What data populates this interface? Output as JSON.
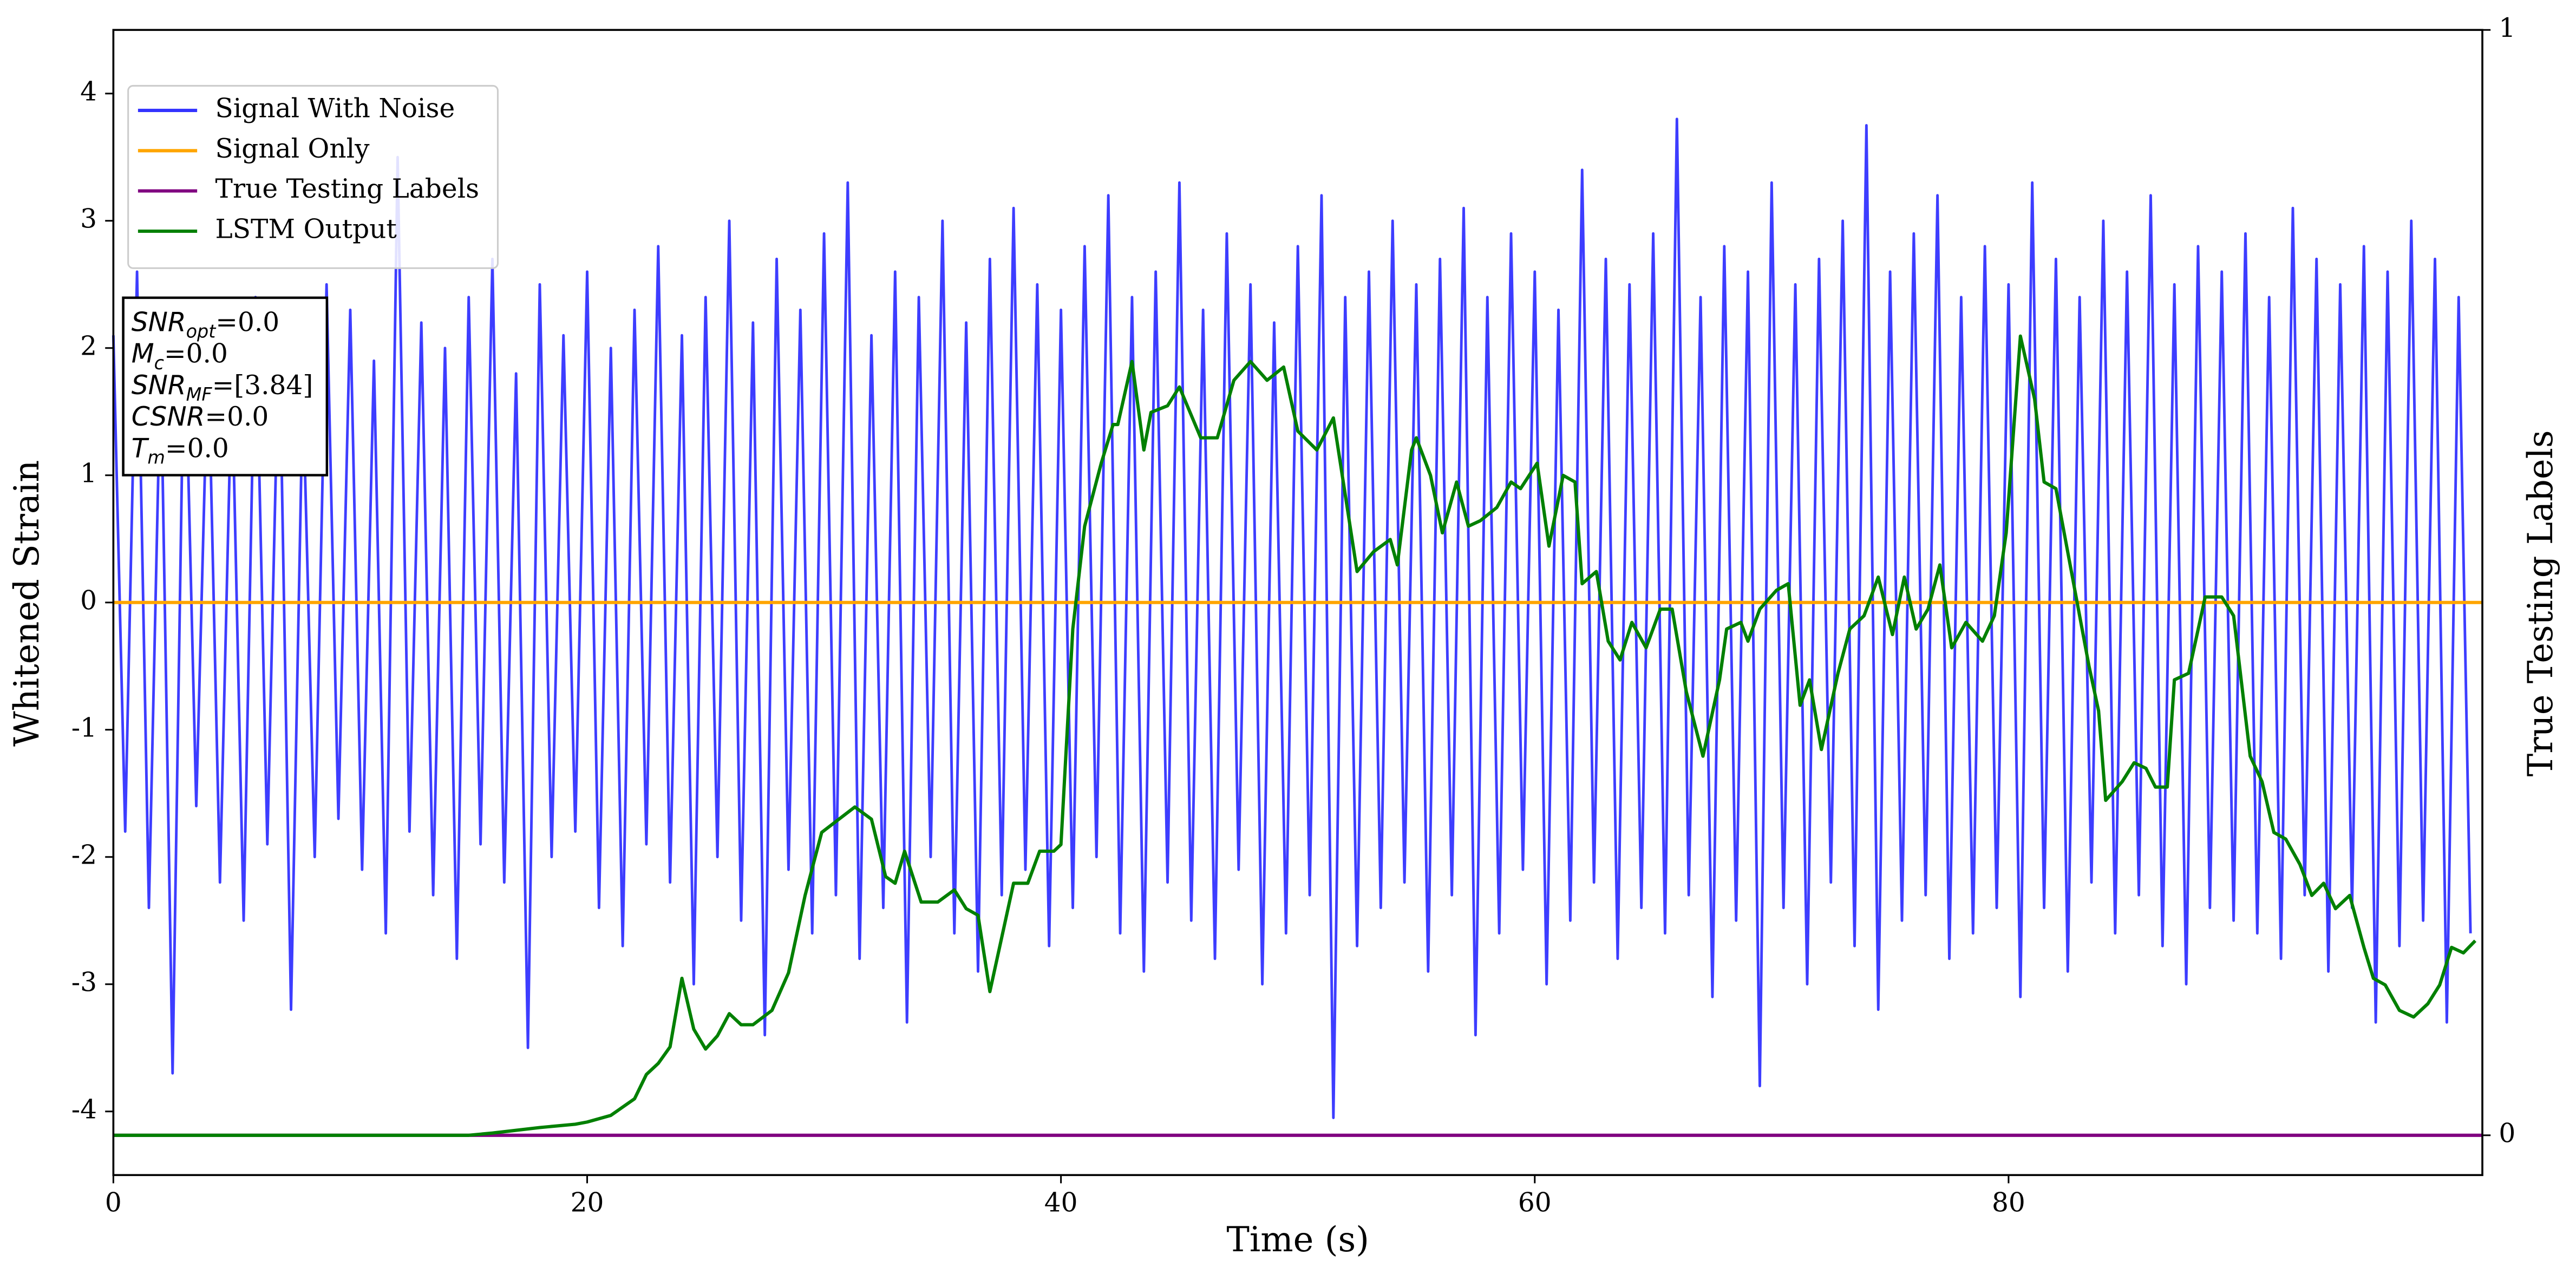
{
  "chart_data": {
    "type": "line",
    "xlabel": "Time (s)",
    "ylabel": "Whitened Strain",
    "y2label": "True Testing Labels",
    "xlim": [
      0,
      100
    ],
    "ylim": [
      -4.5,
      4.5
    ],
    "y2lim": [
      -0.036,
      1
    ],
    "xticks": [
      0,
      20,
      40,
      60,
      80
    ],
    "yticks": [
      -4,
      -3,
      -2,
      -1,
      0,
      1,
      2,
      3,
      4
    ],
    "y2ticks": [
      0,
      1
    ],
    "legend": "upper left",
    "annotations": [
      {
        "text": "SNR",
        "sub": "opt",
        "rest": "=0.0"
      },
      {
        "text": "M",
        "sub": "c",
        "rest": "=0.0"
      },
      {
        "text": "SNR",
        "sub": "MF",
        "rest": "=[3.84]"
      },
      {
        "text": "CSNR",
        "rest": "=0.0"
      },
      {
        "text": "T",
        "sub": "m",
        "rest": "=0.0"
      }
    ],
    "series": [
      {
        "name": "Signal With Noise",
        "color": "#3333ff",
        "x": [
          0,
          0.5,
          1,
          1.5,
          2,
          2.5,
          3,
          3.5,
          4,
          4.5,
          5,
          5.5,
          6,
          6.5,
          7,
          7.5,
          8,
          8.5,
          9,
          9.5,
          10,
          10.5,
          11,
          11.5,
          12,
          12.5,
          13,
          13.5,
          14,
          14.5,
          15,
          15.5,
          16,
          16.5,
          17,
          17.5,
          18,
          18.5,
          19,
          19.5,
          20,
          20.5,
          21,
          21.5,
          22,
          22.5,
          23,
          23.5,
          24,
          24.5,
          25,
          25.5,
          26,
          26.5,
          27,
          27.5,
          28,
          28.5,
          29,
          29.5,
          30,
          30.5,
          31,
          31.5,
          32,
          32.5,
          33,
          33.5,
          34,
          34.5,
          35,
          35.5,
          36,
          36.5,
          37,
          37.5,
          38,
          38.5,
          39,
          39.5,
          40,
          40.5,
          41,
          41.5,
          42,
          42.5,
          43,
          43.5,
          44,
          44.5,
          45,
          45.5,
          46,
          46.5,
          47,
          47.5,
          48,
          48.5,
          49,
          49.5,
          50,
          50.5,
          51,
          51.5,
          52,
          52.5,
          53,
          53.5,
          54,
          54.5,
          55,
          55.5,
          56,
          56.5,
          57,
          57.5,
          58,
          58.5,
          59,
          59.5,
          60,
          60.5,
          61,
          61.5,
          62,
          62.5,
          63,
          63.5,
          64,
          64.5,
          65,
          65.5,
          66,
          66.5,
          67,
          67.5,
          68,
          68.5,
          69,
          69.5,
          70,
          70.5,
          71,
          71.5,
          72,
          72.5,
          73,
          73.5,
          74,
          74.5,
          75,
          75.5,
          76,
          76.5,
          77,
          77.5,
          78,
          78.5,
          79,
          79.5,
          80,
          80.5,
          81,
          81.5,
          82,
          82.5,
          83,
          83.5,
          84,
          84.5,
          85,
          85.5,
          86,
          86.5,
          87,
          87.5,
          88,
          88.5,
          89,
          89.5,
          90,
          90.5,
          91,
          91.5,
          92,
          92.5,
          93,
          93.5,
          94,
          94.5,
          95,
          95.5,
          96,
          96.5,
          97,
          97.5,
          98,
          98.5,
          99,
          99.5
        ],
        "values": [
          2.1,
          -1.8,
          2.6,
          -2.4,
          1.9,
          -3.7,
          2.3,
          -1.6,
          2.0,
          -2.2,
          1.8,
          -2.5,
          2.4,
          -1.9,
          2.2,
          -3.2,
          1.7,
          -2.0,
          2.5,
          -1.7,
          2.3,
          -2.1,
          1.9,
          -2.6,
          3.5,
          -1.8,
          2.2,
          -2.3,
          2.0,
          -2.8,
          2.4,
          -1.9,
          2.7,
          -2.2,
          1.8,
          -3.5,
          2.5,
          -2.0,
          2.1,
          -1.8,
          2.6,
          -2.4,
          2.0,
          -2.7,
          2.3,
          -1.9,
          2.8,
          -2.2,
          2.1,
          -3.0,
          2.4,
          -2.0,
          3.0,
          -2.5,
          2.2,
          -3.4,
          2.7,
          -2.1,
          2.3,
          -2.6,
          2.9,
          -2.3,
          3.3,
          -2.8,
          2.1,
          -2.4,
          2.6,
          -3.3,
          2.4,
          -2.0,
          3.0,
          -2.6,
          2.2,
          -2.9,
          2.7,
          -2.3,
          3.1,
          -2.1,
          2.5,
          -2.7,
          2.3,
          -2.4,
          2.8,
          -2.0,
          3.2,
          -2.6,
          2.4,
          -2.9,
          2.6,
          -2.2,
          3.3,
          -2.5,
          2.3,
          -2.8,
          2.9,
          -2.1,
          2.5,
          -3.0,
          2.2,
          -2.6,
          2.8,
          -2.3,
          3.2,
          -4.05,
          2.4,
          -2.7,
          2.6,
          -2.4,
          3.0,
          -2.2,
          2.5,
          -2.9,
          2.7,
          -2.3,
          3.1,
          -3.4,
          2.4,
          -2.6,
          2.9,
          -2.1,
          2.6,
          -3.0,
          2.3,
          -2.5,
          3.4,
          -2.2,
          2.7,
          -2.8,
          2.5,
          -2.4,
          2.9,
          -2.6,
          3.8,
          -2.3,
          2.4,
          -3.1,
          2.8,
          -2.5,
          2.6,
          -3.8,
          3.3,
          -2.4,
          2.5,
          -3.0,
          2.7,
          -2.2,
          3.0,
          -2.7,
          3.75,
          -3.2,
          2.6,
          -2.5,
          2.9,
          -2.3,
          3.2,
          -2.8,
          2.4,
          -2.6,
          2.8,
          -2.4,
          2.5,
          -3.1,
          3.3,
          -2.4,
          2.7,
          -2.9,
          2.4,
          -2.2,
          3.0,
          -2.6,
          2.6,
          -2.3,
          3.2,
          -2.7,
          2.5,
          -3.0,
          2.8,
          -2.4,
          2.6,
          -2.5,
          2.9,
          -2.6,
          2.4,
          -2.8,
          3.1,
          -2.3,
          2.7,
          -2.9,
          2.5,
          -2.4,
          2.8,
          -3.3,
          2.6,
          -2.7,
          3.0,
          -2.5,
          2.7,
          -3.3,
          2.4,
          -2.6
        ]
      },
      {
        "name": "Signal Only",
        "color": "#ffa500",
        "x": [
          0,
          100
        ],
        "values": [
          0,
          0
        ]
      },
      {
        "name": "True Testing Labels",
        "color": "#800080",
        "axis": "y2",
        "x": [
          0,
          100
        ],
        "values": [
          0,
          0
        ]
      },
      {
        "name": "LSTM Output",
        "color": "#008000",
        "axis": "y2",
        "x": [
          0,
          15,
          16,
          18,
          19.5,
          20,
          21,
          22,
          22.5,
          23,
          23.5,
          24,
          24.5,
          25,
          25.5,
          26,
          26.5,
          27,
          27.8,
          28.5,
          29.2,
          29.9,
          31.3,
          32,
          32.6,
          33,
          33.4,
          34.1,
          34.8,
          35.5,
          36,
          36.5,
          37,
          38,
          38.6,
          39.1,
          39.7,
          40,
          40.5,
          41,
          41.7,
          42.2,
          42.4,
          43,
          43.5,
          43.8,
          44.5,
          45,
          45.9,
          46.6,
          47.3,
          48,
          48.7,
          49.4,
          50,
          50.8,
          51.5,
          52.5,
          53.2,
          53.9,
          54.2,
          54.8,
          55,
          55.6,
          56.1,
          56.7,
          57.2,
          57.7,
          58.4,
          59,
          59.4,
          60.1,
          60.6,
          61.2,
          61.7,
          62,
          62.6,
          63.1,
          63.6,
          64.1,
          64.7,
          65.3,
          65.8,
          66.4,
          67.1,
          67.8,
          68.1,
          68.7,
          69,
          69.5,
          70.2,
          70.7,
          71.2,
          71.6,
          72.1,
          72.8,
          73.3,
          73.9,
          74.5,
          75.1,
          75.6,
          76.1,
          76.6,
          77.1,
          77.6,
          78.2,
          78.9,
          79.4,
          79.9,
          80.5,
          81.1,
          81.5,
          82,
          82.6,
          83.4,
          83.8,
          84.1,
          84.8,
          85.3,
          85.8,
          86.2,
          86.7,
          87,
          87.6,
          88.3,
          89,
          89.5,
          90.2,
          90.7,
          91.2,
          91.7,
          92.3,
          92.8,
          93.3,
          93.8,
          94.4,
          95,
          95.4,
          95.9,
          96.5,
          97.1,
          97.7,
          98.2,
          98.7,
          99.2,
          99.7
        ],
        "values": [
          0,
          0,
          0.002,
          0.007,
          0.01,
          0.012,
          0.018,
          0.033,
          0.055,
          0.065,
          0.08,
          0.142,
          0.096,
          0.078,
          0.09,
          0.11,
          0.1,
          0.1,
          0.113,
          0.147,
          0.217,
          0.274,
          0.297,
          0.286,
          0.234,
          0.228,
          0.257,
          0.211,
          0.211,
          0.222,
          0.205,
          0.199,
          0.13,
          0.228,
          0.228,
          0.257,
          0.257,
          0.263,
          0.458,
          0.551,
          0.608,
          0.643,
          0.643,
          0.7,
          0.62,
          0.654,
          0.66,
          0.677,
          0.631,
          0.631,
          0.683,
          0.7,
          0.683,
          0.695,
          0.637,
          0.62,
          0.649,
          0.51,
          0.528,
          0.539,
          0.516,
          0.62,
          0.631,
          0.597,
          0.545,
          0.591,
          0.551,
          0.556,
          0.568,
          0.591,
          0.585,
          0.608,
          0.533,
          0.597,
          0.591,
          0.499,
          0.51,
          0.447,
          0.43,
          0.464,
          0.441,
          0.476,
          0.476,
          0.401,
          0.343,
          0.412,
          0.458,
          0.464,
          0.447,
          0.476,
          0.493,
          0.499,
          0.389,
          0.412,
          0.349,
          0.418,
          0.458,
          0.47,
          0.505,
          0.453,
          0.505,
          0.458,
          0.476,
          0.516,
          0.441,
          0.464,
          0.447,
          0.47,
          0.545,
          0.723,
          0.666,
          0.591,
          0.585,
          0.516,
          0.424,
          0.384,
          0.303,
          0.32,
          0.337,
          0.332,
          0.315,
          0.315,
          0.412,
          0.418,
          0.487,
          0.487,
          0.47,
          0.343,
          0.32,
          0.274,
          0.268,
          0.245,
          0.217,
          0.228,
          0.205,
          0.217,
          0.17,
          0.142,
          0.136,
          0.113,
          0.107,
          0.119,
          0.136,
          0.17,
          0.165,
          0.176
        ]
      }
    ]
  }
}
